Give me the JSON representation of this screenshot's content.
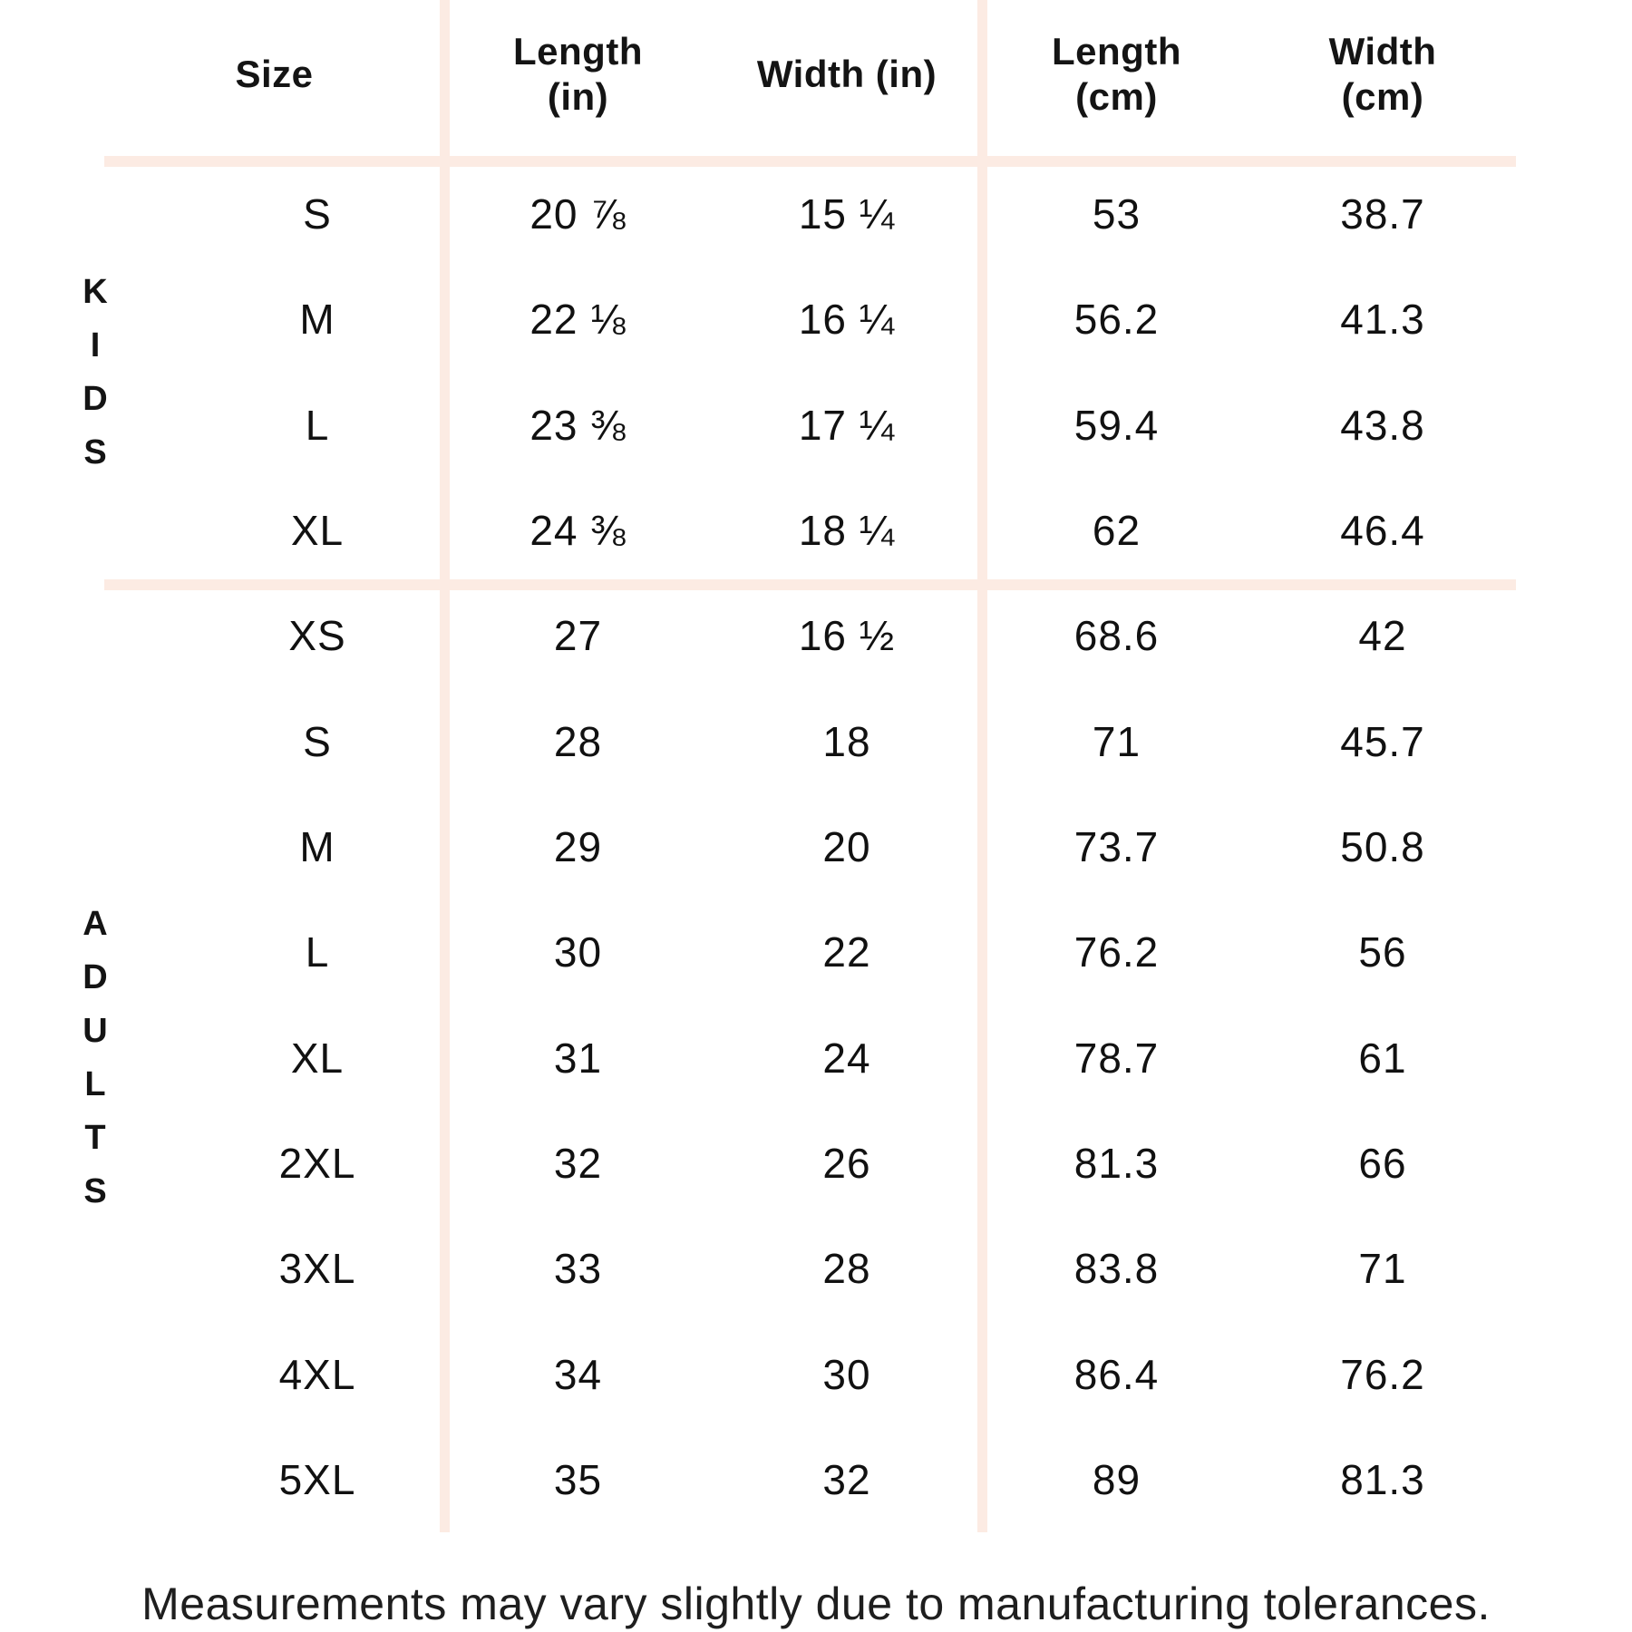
{
  "chart_data": {
    "type": "table",
    "header": {
      "columns": [
        {
          "lines": [
            "Size"
          ]
        },
        {
          "lines": [
            "Length",
            "(in)"
          ]
        },
        {
          "lines": [
            "Width (in)"
          ]
        },
        {
          "lines": [
            "Length",
            "(cm)"
          ]
        },
        {
          "lines": [
            "Width",
            "(cm)"
          ]
        }
      ]
    },
    "sections": [
      {
        "group": "KIDS",
        "rows": [
          {
            "size": "S",
            "length_in": "20 ⅞",
            "width_in": "15 ¼",
            "length_cm": "53",
            "width_cm": "38.7"
          },
          {
            "size": "M",
            "length_in": "22 ⅛",
            "width_in": "16 ¼",
            "length_cm": "56.2",
            "width_cm": "41.3"
          },
          {
            "size": "L",
            "length_in": "23 ⅜",
            "width_in": "17 ¼",
            "length_cm": "59.4",
            "width_cm": "43.8"
          },
          {
            "size": "XL",
            "length_in": "24 ⅜",
            "width_in": "18 ¼",
            "length_cm": "62",
            "width_cm": "46.4"
          }
        ]
      },
      {
        "group": "ADULTS",
        "rows": [
          {
            "size": "XS",
            "length_in": "27",
            "width_in": "16 ½",
            "length_cm": "68.6",
            "width_cm": "42"
          },
          {
            "size": "S",
            "length_in": "28",
            "width_in": "18",
            "length_cm": "71",
            "width_cm": "45.7"
          },
          {
            "size": "M",
            "length_in": "29",
            "width_in": "20",
            "length_cm": "73.7",
            "width_cm": "50.8"
          },
          {
            "size": "L",
            "length_in": "30",
            "width_in": "22",
            "length_cm": "76.2",
            "width_cm": "56"
          },
          {
            "size": "XL",
            "length_in": "31",
            "width_in": "24",
            "length_cm": "78.7",
            "width_cm": "61"
          },
          {
            "size": "2XL",
            "length_in": "32",
            "width_in": "26",
            "length_cm": "81.3",
            "width_cm": "66"
          },
          {
            "size": "3XL",
            "length_in": "33",
            "width_in": "28",
            "length_cm": "83.8",
            "width_cm": "71"
          },
          {
            "size": "4XL",
            "length_in": "34",
            "width_in": "30",
            "length_cm": "86.4",
            "width_cm": "76.2"
          },
          {
            "size": "5XL",
            "length_in": "35",
            "width_in": "32",
            "length_cm": "89",
            "width_cm": "81.3"
          }
        ]
      }
    ],
    "footer": "Measurements may vary slightly due to manufacturing tolerances.",
    "colors": {
      "divider": "#fcebe3",
      "text": "#161616",
      "background": "#ffffff"
    }
  }
}
